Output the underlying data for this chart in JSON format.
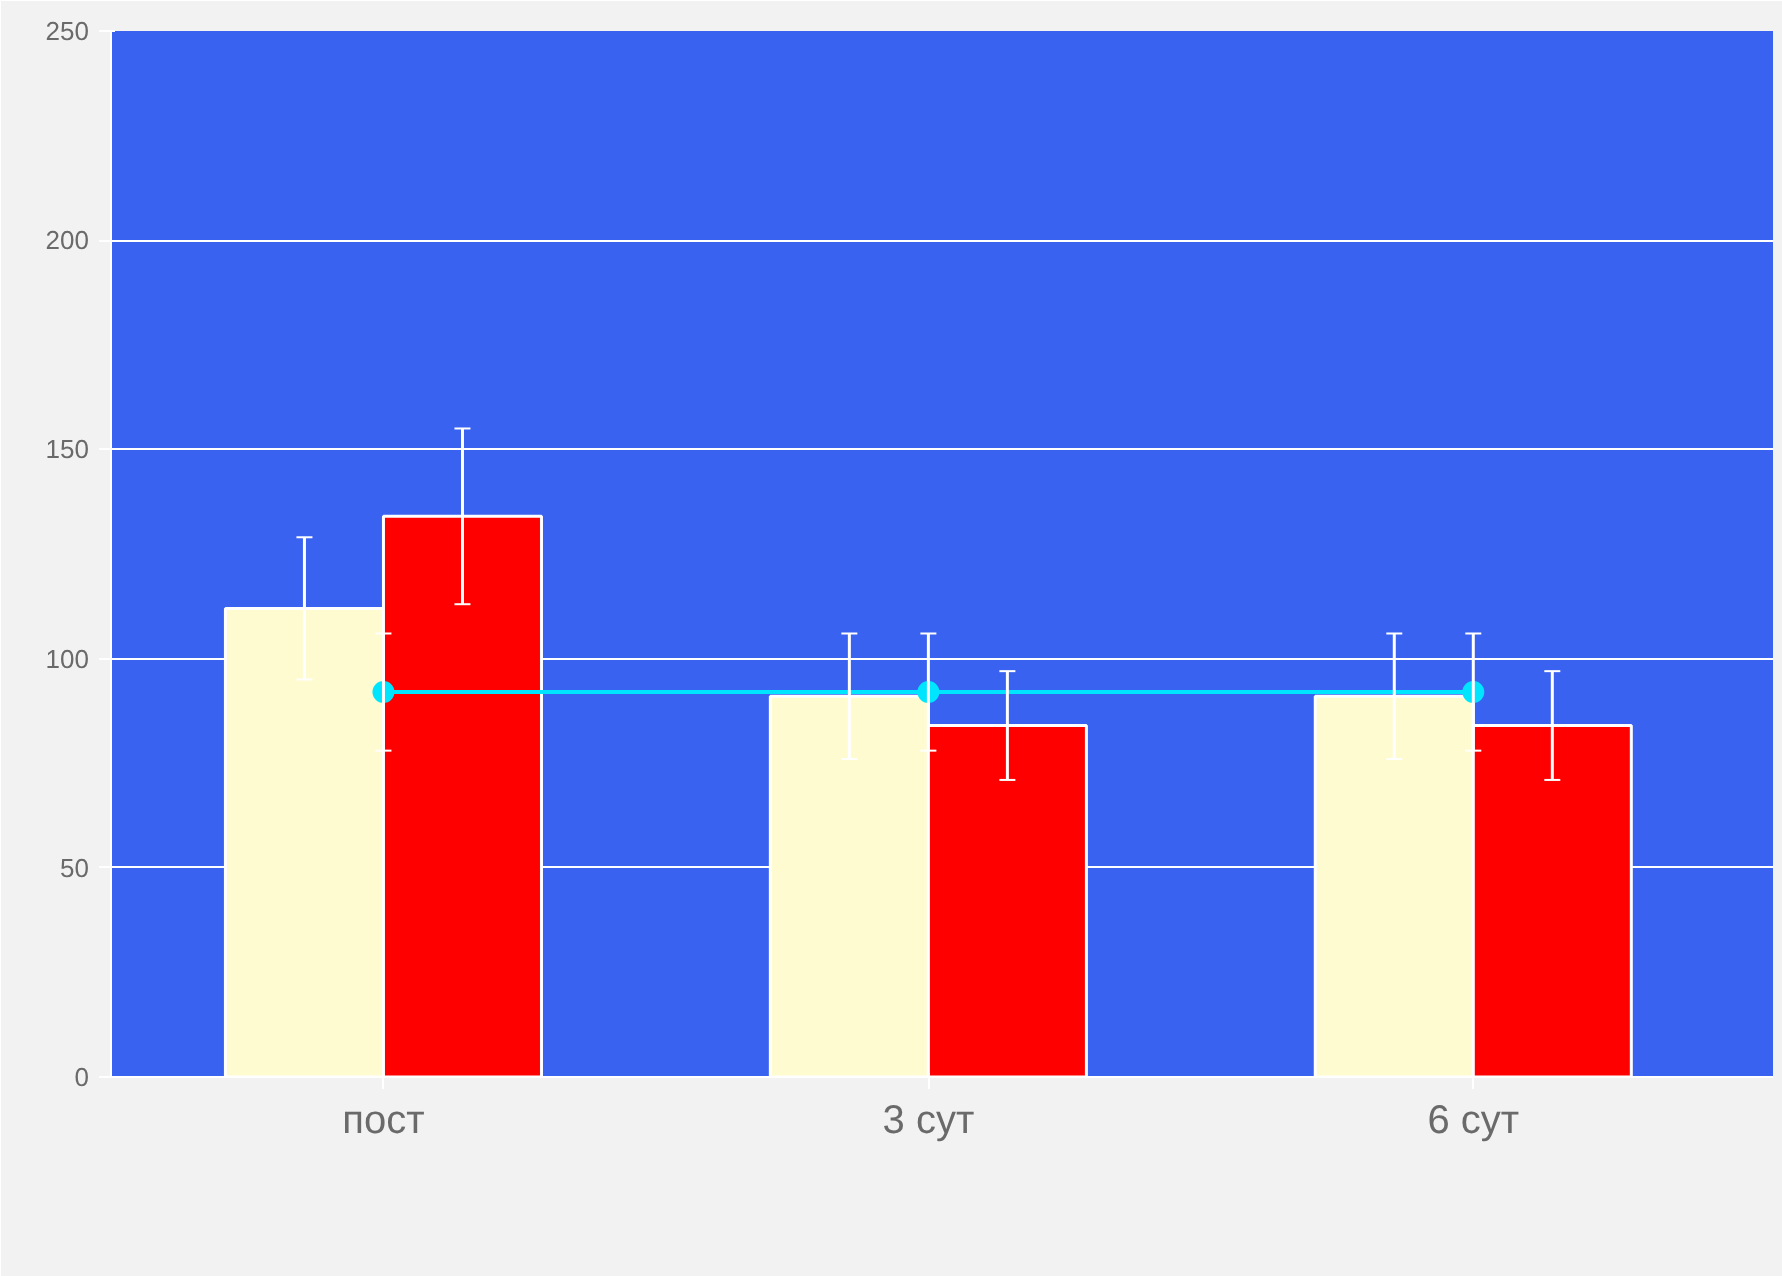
{
  "chart_data": {
    "type": "bar",
    "categories": [
      "пост",
      "3 сут",
      "6 сут"
    ],
    "series": [
      {
        "color": "#fffbd0",
        "values": [
          112,
          91,
          91
        ],
        "errors": [
          17,
          15,
          15
        ]
      },
      {
        "color": "#ff0000",
        "values": [
          134,
          84,
          84
        ],
        "errors": [
          21,
          13,
          13
        ]
      },
      {
        "type": "line",
        "color": "#00e5ff",
        "values": [
          92,
          92,
          92
        ],
        "errors": [
          14,
          14,
          14
        ],
        "marker": "circle"
      }
    ],
    "ylim": [
      0,
      250
    ],
    "yticks": [
      0,
      50,
      100,
      150,
      200,
      250
    ],
    "grid": "y"
  }
}
